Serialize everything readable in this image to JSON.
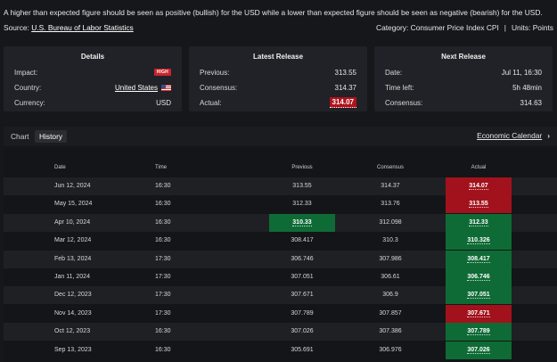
{
  "description": "A higher than expected figure should be seen as positive (bullish) for the USD while a lower than expected figure should be seen as negative (bearish) for the USD.",
  "source": {
    "label": "Source:",
    "link": "U.S. Bureau of Labor Statistics"
  },
  "category": {
    "text": "Category: Consumer Price Index CPI",
    "sep": "|",
    "units": "Units: Points"
  },
  "details": {
    "title": "Details",
    "impact_label": "Impact:",
    "impact_badge": "HIGH",
    "country_label": "Country:",
    "country_value": "United States",
    "currency_label": "Currency:",
    "currency_value": "USD"
  },
  "latest": {
    "title": "Latest Release",
    "previous_label": "Previous:",
    "previous_value": "313.55",
    "consensus_label": "Consensus:",
    "consensus_value": "314.37",
    "actual_label": "Actual:",
    "actual_value": "314.07"
  },
  "next": {
    "title": "Next Release",
    "date_label": "Date:",
    "date_value": "Jul 11, 16:30",
    "time_left_label": "Time left:",
    "time_left_value": "5h 48min",
    "consensus_label": "Consensus:",
    "consensus_value": "314.63"
  },
  "tabs": [
    {
      "label": "Chart"
    },
    {
      "label": "History"
    }
  ],
  "active_tab": "History",
  "econ_link": "Economic Calendar",
  "colors": {
    "green": "#0f6b35",
    "red": "#a2121c"
  },
  "table": {
    "headers": {
      "date": "Date",
      "time": "Time",
      "previous": "Previous",
      "consensus": "Consensus",
      "actual": "Actual"
    },
    "rows": [
      {
        "date": "Jun 12, 2024",
        "time": "16:30",
        "previous": "313.55",
        "consensus": "314.37",
        "actual": "314.07",
        "actual_status": "red",
        "previous_status": ""
      },
      {
        "date": "May 15, 2024",
        "time": "16:30",
        "previous": "312.33",
        "consensus": "313.76",
        "actual": "313.55",
        "actual_status": "red",
        "previous_status": ""
      },
      {
        "date": "Apr 10, 2024",
        "time": "16:30",
        "previous": "310.33",
        "consensus": "312.098",
        "actual": "312.33",
        "actual_status": "green",
        "previous_status": "green"
      },
      {
        "date": "Mar 12, 2024",
        "time": "16:30",
        "previous": "308.417",
        "consensus": "310.3",
        "actual": "310.326",
        "actual_status": "green",
        "previous_status": ""
      },
      {
        "date": "Feb 13, 2024",
        "time": "17:30",
        "previous": "306.746",
        "consensus": "307.986",
        "actual": "308.417",
        "actual_status": "green",
        "previous_status": ""
      },
      {
        "date": "Jan 11, 2024",
        "time": "17:30",
        "previous": "307.051",
        "consensus": "306.61",
        "actual": "306.746",
        "actual_status": "green",
        "previous_status": ""
      },
      {
        "date": "Dec 12, 2023",
        "time": "17:30",
        "previous": "307.671",
        "consensus": "306.9",
        "actual": "307.051",
        "actual_status": "green",
        "previous_status": ""
      },
      {
        "date": "Nov 14, 2023",
        "time": "17:30",
        "previous": "307.789",
        "consensus": "307.857",
        "actual": "307.671",
        "actual_status": "red",
        "previous_status": ""
      },
      {
        "date": "Oct 12, 2023",
        "time": "16:30",
        "previous": "307.026",
        "consensus": "307.386",
        "actual": "307.789",
        "actual_status": "green",
        "previous_status": ""
      },
      {
        "date": "Sep 13, 2023",
        "time": "16:30",
        "previous": "305.691",
        "consensus": "306.976",
        "actual": "307.026",
        "actual_status": "green",
        "previous_status": ""
      }
    ]
  }
}
